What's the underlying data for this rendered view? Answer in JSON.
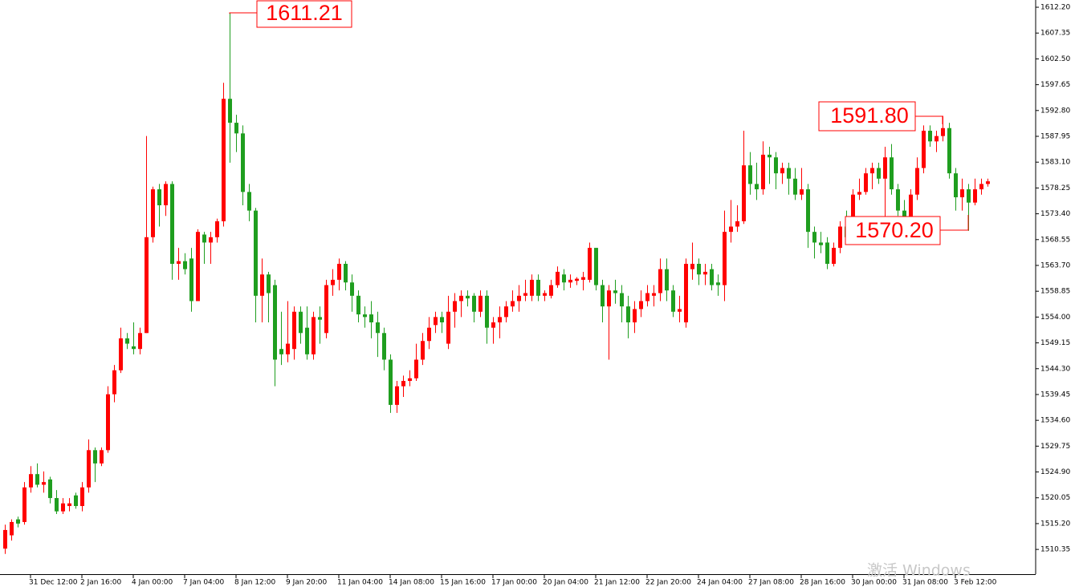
{
  "chart_data": {
    "type": "candlestick",
    "up_color": "#ff0000",
    "down_color": "#1f9e1f",
    "ylim": [
      1505.7,
      1613.56
    ],
    "yticks": [
      {
        "value": 1612.2,
        "label": "1612.20"
      },
      1607.35,
      {
        "value": 1602.5,
        "label": "1602.50"
      },
      1597.65,
      {
        "value": 1592.8,
        "label": "1592.80"
      },
      1587.95,
      {
        "value": 1583.1,
        "label": "1583.10"
      },
      1578.25,
      {
        "value": 1573.4,
        "label": "1573.40"
      },
      1568.55,
      {
        "value": 1563.7,
        "label": "1563.70"
      },
      1558.85,
      {
        "value": 1554,
        "label": "1554.00"
      },
      1549.15,
      {
        "value": 1544.3,
        "label": "1544.30"
      },
      1539.45,
      {
        "value": 1534.6,
        "label": "1534.60"
      },
      1529.75,
      {
        "value": 1524.9,
        "label": "1524.90"
      },
      1520.05,
      {
        "value": 1515.2,
        "label": "1515.20"
      },
      1510.35
    ],
    "categories": [
      null,
      null,
      null,
      null,
      "31 Dec 12:00",
      null,
      null,
      null,
      null,
      null,
      null,
      null,
      "2 Jan 16:00",
      null,
      null,
      null,
      null,
      null,
      null,
      null,
      "4 Jan 00:00",
      null,
      null,
      null,
      null,
      null,
      null,
      null,
      "7 Jan 04:00",
      null,
      null,
      null,
      null,
      null,
      null,
      null,
      "8 Jan 12:00",
      null,
      null,
      null,
      null,
      null,
      null,
      null,
      "9 Jan 20:00",
      null,
      null,
      null,
      null,
      null,
      null,
      null,
      "11 Jan 04:00",
      null,
      null,
      null,
      null,
      null,
      null,
      null,
      "14 Jan 08:00",
      null,
      null,
      null,
      null,
      null,
      null,
      null,
      "15 Jan 16:00",
      null,
      null,
      null,
      null,
      null,
      null,
      null,
      "17 Jan 00:00",
      null,
      null,
      null,
      null,
      null,
      null,
      null,
      "20 Jan 04:00",
      null,
      null,
      null,
      null,
      null,
      null,
      null,
      "21 Jan 12:00",
      null,
      null,
      null,
      null,
      null,
      null,
      null,
      "22 Jan 20:00",
      null,
      null,
      null,
      null,
      null,
      null,
      null,
      "24 Jan 04:00",
      null,
      null,
      null,
      null,
      null,
      null,
      null,
      "27 Jan 08:00",
      null,
      null,
      null,
      null,
      null,
      null,
      null,
      "28 Jan 16:00",
      null,
      null,
      null,
      null,
      null,
      null,
      null,
      "30 Jan 00:00",
      null,
      null,
      null,
      null,
      null,
      null,
      null,
      "31 Jan 08:00",
      null,
      null,
      null,
      null,
      null,
      null,
      null,
      "3 Feb 12:00",
      null,
      null,
      null,
      null,
      null
    ],
    "ohlc": [
      [
        1510.5,
        1515,
        1509.5,
        1514
      ],
      [
        1513,
        1516,
        1512,
        1515.5
      ],
      [
        1516,
        1516.5,
        1514.5,
        1515.2
      ],
      [
        1515.5,
        1523,
        1515,
        1522
      ],
      [
        1522,
        1526,
        1521,
        1524.5
      ],
      [
        1524.5,
        1526.5,
        1522,
        1522.5
      ],
      [
        1522.5,
        1525,
        1521,
        1523
      ],
      [
        1523.5,
        1524,
        1519,
        1520
      ],
      [
        1520,
        1521.5,
        1517,
        1517.5
      ],
      [
        1517.5,
        1520,
        1517,
        1519
      ],
      [
        1518.5,
        1520,
        1517.5,
        1519
      ],
      [
        1520.5,
        1521,
        1518,
        1518.5
      ],
      [
        1518.5,
        1523,
        1517.5,
        1522
      ],
      [
        1522,
        1531,
        1521,
        1529
      ],
      [
        1529,
        1529.5,
        1523,
        1526.5
      ],
      [
        1526.5,
        1529.5,
        1526,
        1529
      ],
      [
        1529,
        1541,
        1528.5,
        1539.5
      ],
      [
        1539.5,
        1545,
        1538,
        1544
      ],
      [
        1544,
        1552,
        1543.5,
        1550
      ],
      [
        1550,
        1551,
        1548,
        1549
      ],
      [
        1548.5,
        1553,
        1547,
        1548
      ],
      [
        1548,
        1552,
        1547,
        1551
      ],
      [
        1551,
        1588,
        1551,
        1569
      ],
      [
        1569,
        1578.5,
        1568,
        1578
      ],
      [
        1578,
        1579,
        1571,
        1575
      ],
      [
        1575,
        1579.5,
        1573,
        1579
      ],
      [
        1579,
        1579.5,
        1561,
        1564
      ],
      [
        1564,
        1567,
        1561,
        1564.5
      ],
      [
        1564.5,
        1566,
        1562,
        1563
      ],
      [
        1565,
        1567,
        1555,
        1557
      ],
      [
        1557,
        1570.5,
        1557,
        1570
      ],
      [
        1569.5,
        1570,
        1564,
        1568
      ],
      [
        1568,
        1570,
        1564,
        1569
      ],
      [
        1569,
        1572.5,
        1568,
        1572
      ],
      [
        1572,
        1598,
        1571,
        1595
      ],
      [
        1595,
        1611.21,
        1583,
        1590.5
      ],
      [
        1590.5,
        1592,
        1585,
        1588.5
      ],
      [
        1588.5,
        1590,
        1575,
        1577.5
      ],
      [
        1577.5,
        1579,
        1572,
        1574
      ],
      [
        1574,
        1574.5,
        1553,
        1558
      ],
      [
        1558,
        1565,
        1553,
        1562
      ],
      [
        1562,
        1562.5,
        1553,
        1558.5
      ],
      [
        1560,
        1561,
        1541,
        1546
      ],
      [
        1548,
        1555,
        1545,
        1547
      ],
      [
        1547,
        1557,
        1545.5,
        1549
      ],
      [
        1548,
        1556,
        1546,
        1555
      ],
      [
        1555,
        1556,
        1549,
        1551
      ],
      [
        1552,
        1556,
        1546,
        1547
      ],
      [
        1547,
        1555,
        1546,
        1554
      ],
      [
        1554,
        1556,
        1549,
        1553.5
      ],
      [
        1551,
        1561,
        1550,
        1560
      ],
      [
        1560,
        1563,
        1558,
        1561
      ],
      [
        1561,
        1565,
        1559,
        1564
      ],
      [
        1564,
        1564.5,
        1559,
        1560.5
      ],
      [
        1560.5,
        1562,
        1555,
        1558
      ],
      [
        1558,
        1559,
        1553,
        1554.5
      ],
      [
        1554.5,
        1556,
        1552,
        1554
      ],
      [
        1554.5,
        1557,
        1550,
        1553
      ],
      [
        1553,
        1555,
        1546.5,
        1551
      ],
      [
        1551,
        1552,
        1544,
        1546
      ],
      [
        1546,
        1547,
        1536,
        1537.5
      ],
      [
        1537.5,
        1542,
        1536,
        1541
      ],
      [
        1541,
        1543,
        1539,
        1542
      ],
      [
        1542,
        1544,
        1541,
        1542.5
      ],
      [
        1542.5,
        1549,
        1542,
        1546
      ],
      [
        1546,
        1551,
        1545,
        1549.5
      ],
      [
        1549.5,
        1554,
        1548,
        1552
      ],
      [
        1552.5,
        1555,
        1551,
        1554
      ],
      [
        1554,
        1555,
        1551,
        1553
      ],
      [
        1549,
        1558,
        1548,
        1555
      ],
      [
        1555,
        1558.5,
        1552,
        1557
      ],
      [
        1557,
        1559,
        1554,
        1558
      ],
      [
        1558,
        1559,
        1556,
        1557.5
      ],
      [
        1558,
        1558.5,
        1553,
        1555
      ],
      [
        1555,
        1559,
        1554,
        1558
      ],
      [
        1558,
        1559,
        1549,
        1552
      ],
      [
        1552,
        1554,
        1549,
        1553
      ],
      [
        1553,
        1556,
        1550,
        1554
      ],
      [
        1554,
        1557,
        1553,
        1556
      ],
      [
        1556,
        1559,
        1555,
        1557
      ],
      [
        1557,
        1560,
        1555,
        1558
      ],
      [
        1558,
        1561,
        1557,
        1558.5
      ],
      [
        1558,
        1562,
        1557,
        1561
      ],
      [
        1561,
        1562,
        1557,
        1558
      ],
      [
        1558,
        1559,
        1557,
        1558.5
      ],
      [
        1558,
        1561,
        1557.5,
        1560
      ],
      [
        1560,
        1563.5,
        1559.5,
        1562.5
      ],
      [
        1562,
        1563,
        1559,
        1560.5
      ],
      [
        1560.5,
        1562,
        1559.5,
        1561
      ],
      [
        1560.8,
        1561.5,
        1560,
        1561.2
      ],
      [
        1561,
        1562.5,
        1559,
        1561.5
      ],
      [
        1561,
        1568,
        1560.5,
        1567
      ],
      [
        1567,
        1567,
        1559,
        1560
      ],
      [
        1560,
        1561,
        1553,
        1556
      ],
      [
        1556,
        1560,
        1546,
        1559
      ],
      [
        1559,
        1561,
        1556.5,
        1558.5
      ],
      [
        1558.5,
        1560,
        1553,
        1556
      ],
      [
        1556,
        1558,
        1550,
        1553
      ],
      [
        1553,
        1557,
        1551,
        1555.5
      ],
      [
        1555.5,
        1559,
        1554,
        1557
      ],
      [
        1557,
        1560,
        1556,
        1558.5
      ],
      [
        1558,
        1560,
        1556,
        1558.5
      ],
      [
        1558.5,
        1565,
        1557,
        1563
      ],
      [
        1563,
        1565,
        1557,
        1559
      ],
      [
        1559,
        1560,
        1554,
        1555
      ],
      [
        1555,
        1558,
        1553,
        1555.5
      ],
      [
        1553,
        1565,
        1552,
        1564
      ],
      [
        1563,
        1568,
        1561,
        1564
      ],
      [
        1564,
        1565,
        1560,
        1562
      ],
      [
        1562,
        1564,
        1560,
        1562.5
      ],
      [
        1563,
        1564,
        1559,
        1560
      ],
      [
        1560.5,
        1562,
        1558,
        1560
      ],
      [
        1560,
        1574,
        1557,
        1570
      ],
      [
        1570,
        1576,
        1568,
        1571
      ],
      [
        1571,
        1575,
        1570,
        1572
      ],
      [
        1572,
        1589,
        1571.5,
        1582.5
      ],
      [
        1582.5,
        1585,
        1577,
        1579
      ],
      [
        1579,
        1583,
        1576,
        1578
      ],
      [
        1578,
        1587,
        1577,
        1584.5
      ],
      [
        1584.5,
        1586,
        1579,
        1584
      ],
      [
        1584,
        1585,
        1578,
        1581
      ],
      [
        1581,
        1583,
        1579,
        1582
      ],
      [
        1582,
        1583,
        1577,
        1580
      ],
      [
        1580,
        1582,
        1576,
        1577
      ],
      [
        1577,
        1582,
        1576,
        1578
      ],
      [
        1578,
        1579,
        1567,
        1570
      ],
      [
        1570,
        1571,
        1565,
        1568
      ],
      [
        1568,
        1570,
        1566,
        1567.5
      ],
      [
        1568,
        1569,
        1563,
        1564
      ],
      [
        1564,
        1568,
        1563.5,
        1567
      ],
      [
        1567,
        1572,
        1566,
        1571
      ],
      [
        1571,
        1574,
        1568,
        1569
      ],
      [
        1569,
        1578,
        1568,
        1577
      ],
      [
        1577,
        1580,
        1576,
        1577.5
      ],
      [
        1577.5,
        1582,
        1577,
        1581
      ],
      [
        1581,
        1583,
        1578,
        1582
      ],
      [
        1582,
        1583,
        1579,
        1580
      ],
      [
        1580,
        1586,
        1572,
        1584
      ],
      [
        1584,
        1586.5,
        1577,
        1578
      ],
      [
        1578,
        1579,
        1573,
        1574
      ],
      [
        1574,
        1576,
        1571,
        1572
      ],
      [
        1572,
        1578,
        1571,
        1577
      ],
      [
        1577,
        1584,
        1576,
        1582
      ],
      [
        1582,
        1590,
        1581,
        1589
      ],
      [
        1589,
        1590,
        1586,
        1587
      ],
      [
        1587,
        1589,
        1585,
        1588
      ],
      [
        1588,
        1591.8,
        1587,
        1589.5
      ],
      [
        1589.5,
        1590.5,
        1580,
        1581
      ],
      [
        1581,
        1582,
        1574,
        1576.5
      ],
      [
        1576.5,
        1580,
        1574,
        1578
      ],
      [
        1578,
        1579,
        1570.2,
        1575.5
      ],
      [
        1575.5,
        1580,
        1575,
        1578
      ],
      [
        1578,
        1580,
        1577,
        1579
      ],
      [
        1579,
        1580,
        1578.5,
        1579.5
      ]
    ],
    "annotations": [
      "1611.21",
      "1591.80",
      "1570.20"
    ]
  },
  "watermark": "激活 Windows"
}
